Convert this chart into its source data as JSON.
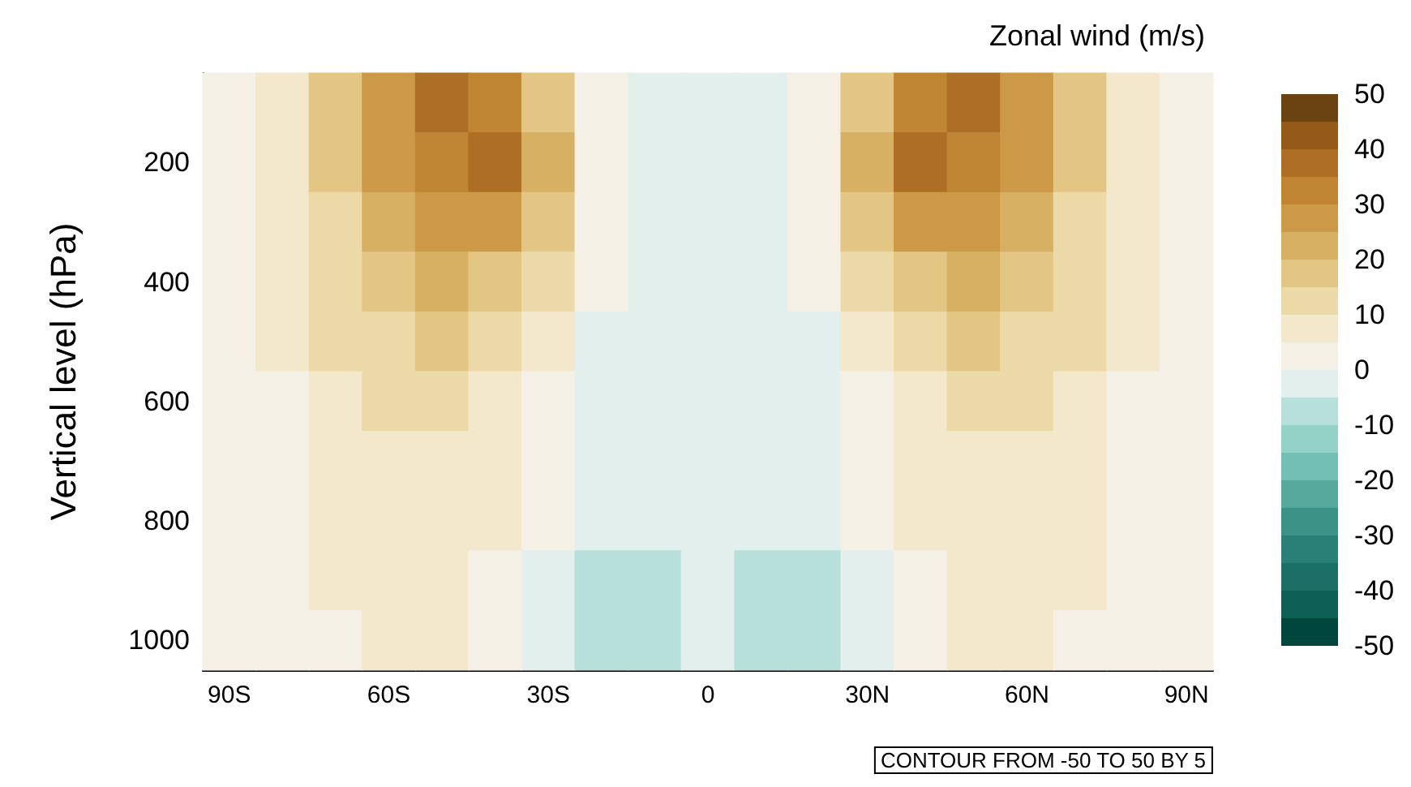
{
  "chart_data": {
    "type": "heatmap",
    "title": "Zonal wind (m/s)",
    "ylabel": "Vertical level (hPa)",
    "annotations": [
      "CONTOUR FROM -50 TO 50 BY 5"
    ],
    "categories": [
      "90S",
      null,
      null,
      "60S",
      null,
      null,
      "30S",
      null,
      null,
      "0",
      null,
      null,
      "30N",
      null,
      null,
      "60N",
      null,
      null,
      "90N"
    ],
    "y_categories": [
      null,
      "200",
      null,
      "400",
      null,
      "600",
      null,
      "800",
      null,
      "1000"
    ],
    "cells": [
      [
        2,
        7,
        15,
        25,
        35,
        33,
        15,
        3,
        -1,
        -2,
        -1,
        3,
        15,
        33,
        35,
        25,
        15,
        7,
        2
      ],
      [
        2,
        7,
        15,
        25,
        32,
        35,
        20,
        4,
        -2,
        -3,
        -2,
        4,
        20,
        35,
        32,
        25,
        15,
        7,
        2
      ],
      [
        2,
        7,
        14,
        22,
        27,
        25,
        15,
        2,
        -3,
        -3,
        -3,
        2,
        15,
        25,
        27,
        22,
        14,
        7,
        2
      ],
      [
        2,
        6,
        12,
        17,
        20,
        18,
        10,
        1,
        -2,
        -3,
        -2,
        1,
        10,
        18,
        20,
        17,
        12,
        6,
        2
      ],
      [
        2,
        5,
        10,
        14,
        15,
        13,
        6,
        -1,
        -2,
        -3,
        -2,
        -1,
        6,
        13,
        15,
        14,
        10,
        5,
        2
      ],
      [
        1,
        4,
        8,
        11,
        12,
        9,
        3,
        -1,
        -2,
        -3,
        -2,
        -1,
        3,
        9,
        12,
        11,
        8,
        4,
        1
      ],
      [
        1,
        4,
        7,
        9,
        9,
        7,
        2,
        -1,
        -3,
        -3,
        -3,
        -1,
        2,
        7,
        9,
        9,
        7,
        4,
        1
      ],
      [
        1,
        3,
        6,
        8,
        7,
        5,
        1,
        -2,
        -4,
        -3,
        -4,
        -2,
        1,
        5,
        7,
        8,
        6,
        3,
        1
      ],
      [
        0,
        3,
        5,
        7,
        6,
        4,
        -1,
        -6,
        -6,
        -4,
        -6,
        -6,
        -1,
        4,
        6,
        7,
        5,
        3,
        0
      ],
      [
        0,
        2,
        4,
        6,
        5,
        3,
        -1,
        -6,
        -6,
        -4,
        -6,
        -6,
        -1,
        3,
        5,
        6,
        4,
        2,
        0
      ]
    ],
    "clim": [
      -50,
      50
    ],
    "cticks": [
      -50,
      -40,
      -30,
      -20,
      -10,
      0,
      10,
      20,
      30,
      40,
      50
    ],
    "colors": [
      "#00463c",
      "#0d5e55",
      "#1b6f66",
      "#2a8077",
      "#3b9387",
      "#55a99d",
      "#74bfb3",
      "#94d1c6",
      "#b6e0d9",
      "#e3efed",
      "#f5f0e6",
      "#f3e8cc",
      "#ecd9a8",
      "#e3c684",
      "#d8b063",
      "#cc9a47",
      "#bf8533",
      "#ad6f25",
      "#955a18",
      "#6b4212"
    ]
  }
}
